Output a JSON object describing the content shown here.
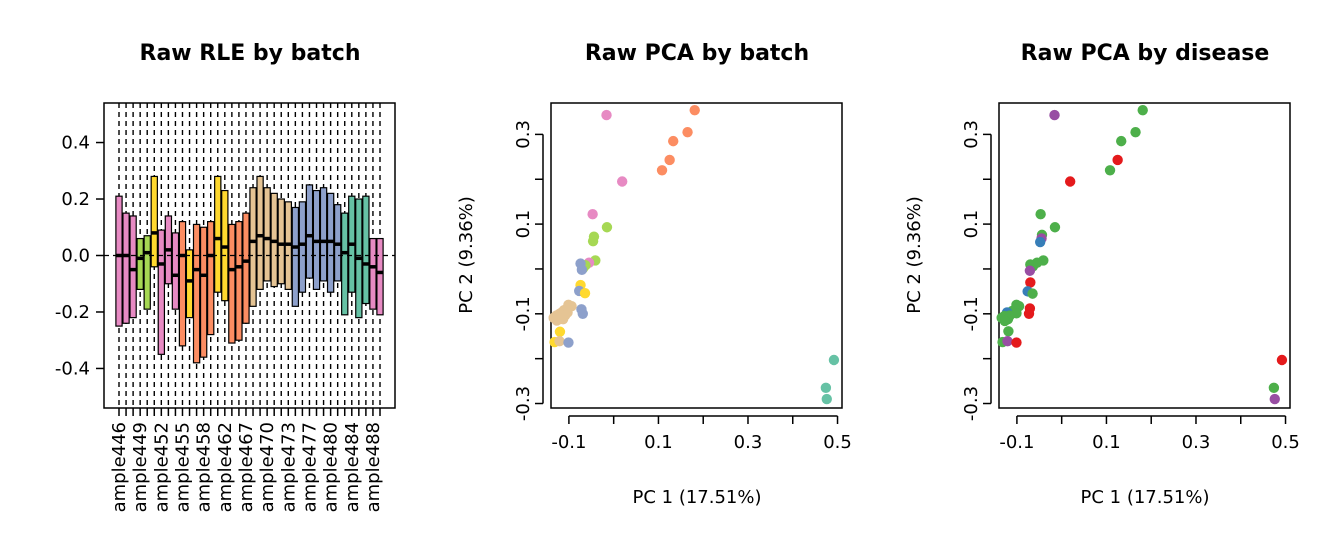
{
  "chart_data": [
    {
      "type": "box",
      "title": "Raw RLE by batch",
      "xlabel": "",
      "ylabel": "",
      "ylim": [
        -0.54,
        0.54
      ],
      "yticks": [
        -0.4,
        -0.2,
        0.0,
        0.2,
        0.4
      ],
      "ytick_labels": [
        "-0.4",
        "-0.2",
        "0.0",
        "0.2",
        "0.4"
      ],
      "xtick_labels": [
        "ample446",
        "ample449",
        "ample452",
        "ample455",
        "ample458",
        "ample462",
        "ample467",
        "ample470",
        "ample473",
        "ample477",
        "ample480",
        "ample484",
        "ample488"
      ],
      "xtick_label_box_index": [
        0,
        3,
        6,
        9,
        12,
        15,
        18,
        21,
        24,
        27,
        30,
        33,
        36
      ],
      "reference_line": 0,
      "boxes": [
        {
          "median": 0.0,
          "q1": -0.25,
          "q3": 0.21,
          "color": "#E78AC3"
        },
        {
          "median": 0.0,
          "q1": -0.24,
          "q3": 0.15,
          "color": "#E78AC3"
        },
        {
          "median": -0.05,
          "q1": -0.22,
          "q3": 0.14,
          "color": "#E78AC3"
        },
        {
          "median": -0.01,
          "q1": -0.12,
          "q3": 0.06,
          "color": "#A6D854"
        },
        {
          "median": 0.01,
          "q1": -0.19,
          "q3": 0.07,
          "color": "#A6D854"
        },
        {
          "median": 0.08,
          "q1": -0.04,
          "q3": 0.28,
          "color": "#FFD92F"
        },
        {
          "median": -0.03,
          "q1": -0.35,
          "q3": 0.09,
          "color": "#E78AC3"
        },
        {
          "median": 0.02,
          "q1": -0.1,
          "q3": 0.14,
          "color": "#E78AC3"
        },
        {
          "median": -0.07,
          "q1": -0.19,
          "q3": 0.08,
          "color": "#E78AC3"
        },
        {
          "median": 0.0,
          "q1": -0.32,
          "q3": 0.12,
          "color": "#FC8D62"
        },
        {
          "median": -0.09,
          "q1": -0.22,
          "q3": 0.02,
          "color": "#FFD92F"
        },
        {
          "median": -0.05,
          "q1": -0.38,
          "q3": 0.11,
          "color": "#FC8D62"
        },
        {
          "median": -0.07,
          "q1": -0.36,
          "q3": 0.1,
          "color": "#FC8D62"
        },
        {
          "median": 0.0,
          "q1": -0.28,
          "q3": 0.12,
          "color": "#FC8D62"
        },
        {
          "median": 0.06,
          "q1": -0.13,
          "q3": 0.28,
          "color": "#FFD92F"
        },
        {
          "median": 0.03,
          "q1": -0.16,
          "q3": 0.23,
          "color": "#FFD92F"
        },
        {
          "median": -0.05,
          "q1": -0.31,
          "q3": 0.11,
          "color": "#FC8D62"
        },
        {
          "median": -0.04,
          "q1": -0.3,
          "q3": 0.12,
          "color": "#FC8D62"
        },
        {
          "median": -0.02,
          "q1": -0.24,
          "q3": 0.15,
          "color": "#FC8D62"
        },
        {
          "median": 0.05,
          "q1": -0.18,
          "q3": 0.24,
          "color": "#E5C494"
        },
        {
          "median": 0.07,
          "q1": -0.12,
          "q3": 0.28,
          "color": "#E5C494"
        },
        {
          "median": 0.06,
          "q1": -0.09,
          "q3": 0.24,
          "color": "#E5C494"
        },
        {
          "median": 0.05,
          "q1": -0.11,
          "q3": 0.22,
          "color": "#E5C494"
        },
        {
          "median": 0.04,
          "q1": -0.1,
          "q3": 0.2,
          "color": "#E5C494"
        },
        {
          "median": 0.04,
          "q1": -0.12,
          "q3": 0.19,
          "color": "#E5C494"
        },
        {
          "median": 0.03,
          "q1": -0.18,
          "q3": 0.17,
          "color": "#8DA0CB"
        },
        {
          "median": 0.04,
          "q1": -0.13,
          "q3": 0.19,
          "color": "#8DA0CB"
        },
        {
          "median": 0.07,
          "q1": -0.08,
          "q3": 0.25,
          "color": "#8DA0CB"
        },
        {
          "median": 0.05,
          "q1": -0.12,
          "q3": 0.23,
          "color": "#8DA0CB"
        },
        {
          "median": 0.05,
          "q1": -0.09,
          "q3": 0.24,
          "color": "#8DA0CB"
        },
        {
          "median": 0.05,
          "q1": -0.13,
          "q3": 0.22,
          "color": "#8DA0CB"
        },
        {
          "median": 0.04,
          "q1": -0.09,
          "q3": 0.18,
          "color": "#8DA0CB"
        },
        {
          "median": 0.01,
          "q1": -0.21,
          "q3": 0.15,
          "color": "#66C2A5"
        },
        {
          "median": 0.04,
          "q1": -0.13,
          "q3": 0.21,
          "color": "#66C2A5"
        },
        {
          "median": -0.01,
          "q1": -0.22,
          "q3": 0.2,
          "color": "#66C2A5"
        },
        {
          "median": -0.03,
          "q1": -0.17,
          "q3": 0.21,
          "color": "#66C2A5"
        },
        {
          "median": -0.04,
          "q1": -0.19,
          "q3": 0.06,
          "color": "#E78AC3"
        },
        {
          "median": -0.06,
          "q1": -0.21,
          "q3": 0.06,
          "color": "#E78AC3"
        }
      ]
    },
    {
      "type": "scatter",
      "title": "Raw PCA by batch",
      "xlabel": "PC 1 (17.51%)",
      "ylabel": "PC 2 (9.36%)",
      "xlim": [
        -0.14,
        0.51
      ],
      "ylim": [
        -0.31,
        0.37
      ],
      "xticks": [
        -0.1,
        0.0,
        0.1,
        0.2,
        0.3,
        0.4,
        0.5
      ],
      "xtick_labels": [
        "-0.1",
        "",
        "0.1",
        "",
        "0.3",
        "",
        "0.5"
      ],
      "yticks": [
        -0.3,
        -0.2,
        -0.1,
        0.0,
        0.1,
        0.2,
        0.3
      ],
      "ytick_labels": [
        "-0.3",
        "",
        "-0.1",
        "",
        "0.1",
        "",
        "0.3"
      ],
      "points": [
        {
          "x": 0.181,
          "y": 0.354,
          "color": "#FC8D62"
        },
        {
          "x": 0.165,
          "y": 0.305,
          "color": "#FC8D62"
        },
        {
          "x": 0.133,
          "y": 0.285,
          "color": "#FC8D62"
        },
        {
          "x": 0.125,
          "y": 0.243,
          "color": "#FC8D62"
        },
        {
          "x": 0.108,
          "y": 0.22,
          "color": "#FC8D62"
        },
        {
          "x": -0.016,
          "y": 0.343,
          "color": "#E78AC3"
        },
        {
          "x": 0.019,
          "y": 0.195,
          "color": "#E78AC3"
        },
        {
          "x": -0.047,
          "y": 0.122,
          "color": "#E78AC3"
        },
        {
          "x": -0.015,
          "y": 0.093,
          "color": "#A6D854"
        },
        {
          "x": -0.044,
          "y": 0.072,
          "color": "#A6D854"
        },
        {
          "x": -0.046,
          "y": 0.062,
          "color": "#A6D854"
        },
        {
          "x": -0.041,
          "y": 0.019,
          "color": "#A6D854"
        },
        {
          "x": -0.055,
          "y": 0.014,
          "color": "#E78AC3"
        },
        {
          "x": -0.063,
          "y": 0.008,
          "color": "#A6D854"
        },
        {
          "x": -0.068,
          "y": 0.002,
          "color": "#A6D854"
        },
        {
          "x": -0.074,
          "y": 0.012,
          "color": "#8DA0CB"
        },
        {
          "x": -0.071,
          "y": -0.002,
          "color": "#8DA0CB"
        },
        {
          "x": -0.074,
          "y": -0.036,
          "color": "#FFD92F"
        },
        {
          "x": -0.077,
          "y": -0.049,
          "color": "#8DA0CB"
        },
        {
          "x": -0.064,
          "y": -0.054,
          "color": "#FFD92F"
        },
        {
          "x": -0.072,
          "y": -0.09,
          "color": "#8DA0CB"
        },
        {
          "x": -0.069,
          "y": -0.1,
          "color": "#8DA0CB"
        },
        {
          "x": -0.101,
          "y": -0.08,
          "color": "#E5C494"
        },
        {
          "x": -0.094,
          "y": -0.083,
          "color": "#E5C494"
        },
        {
          "x": -0.104,
          "y": -0.088,
          "color": "#E5C494"
        },
        {
          "x": -0.111,
          "y": -0.092,
          "color": "#E5C494"
        },
        {
          "x": -0.103,
          "y": -0.097,
          "color": "#E5C494"
        },
        {
          "x": -0.116,
          "y": -0.097,
          "color": "#E5C494"
        },
        {
          "x": -0.108,
          "y": -0.103,
          "color": "#E5C494"
        },
        {
          "x": -0.121,
          "y": -0.1,
          "color": "#E5C494"
        },
        {
          "x": -0.128,
          "y": -0.104,
          "color": "#E5C494"
        },
        {
          "x": -0.134,
          "y": -0.109,
          "color": "#E5C494"
        },
        {
          "x": -0.122,
          "y": -0.112,
          "color": "#E5C494"
        },
        {
          "x": -0.127,
          "y": -0.115,
          "color": "#E5C494"
        },
        {
          "x": -0.113,
          "y": -0.112,
          "color": "#E5C494"
        },
        {
          "x": -0.12,
          "y": -0.14,
          "color": "#FFD92F"
        },
        {
          "x": -0.132,
          "y": -0.163,
          "color": "#FFD92F"
        },
        {
          "x": -0.121,
          "y": -0.161,
          "color": "#E5C494"
        },
        {
          "x": -0.101,
          "y": -0.164,
          "color": "#8DA0CB"
        },
        {
          "x": 0.492,
          "y": -0.203,
          "color": "#66C2A5"
        },
        {
          "x": 0.474,
          "y": -0.265,
          "color": "#66C2A5"
        },
        {
          "x": 0.476,
          "y": -0.29,
          "color": "#66C2A5"
        }
      ]
    },
    {
      "type": "scatter",
      "title": "Raw PCA by disease",
      "xlabel": "PC 1 (17.51%)",
      "ylabel": "PC 2 (9.36%)",
      "xlim": [
        -0.14,
        0.51
      ],
      "ylim": [
        -0.31,
        0.37
      ],
      "xticks": [
        -0.1,
        0.0,
        0.1,
        0.2,
        0.3,
        0.4,
        0.5
      ],
      "xtick_labels": [
        "-0.1",
        "",
        "0.1",
        "",
        "0.3",
        "",
        "0.5"
      ],
      "yticks": [
        -0.3,
        -0.2,
        -0.1,
        0.0,
        0.1,
        0.2,
        0.3
      ],
      "ytick_labels": [
        "-0.3",
        "",
        "-0.1",
        "",
        "0.1",
        "",
        "0.3"
      ],
      "points": [
        {
          "x": 0.181,
          "y": 0.354,
          "color": "#4DAF4A"
        },
        {
          "x": 0.165,
          "y": 0.305,
          "color": "#4DAF4A"
        },
        {
          "x": 0.133,
          "y": 0.285,
          "color": "#4DAF4A"
        },
        {
          "x": 0.125,
          "y": 0.243,
          "color": "#E41A1C"
        },
        {
          "x": 0.108,
          "y": 0.22,
          "color": "#4DAF4A"
        },
        {
          "x": -0.016,
          "y": 0.343,
          "color": "#984EA3"
        },
        {
          "x": 0.019,
          "y": 0.195,
          "color": "#E41A1C"
        },
        {
          "x": -0.047,
          "y": 0.122,
          "color": "#4DAF4A"
        },
        {
          "x": -0.015,
          "y": 0.093,
          "color": "#4DAF4A"
        },
        {
          "x": -0.044,
          "y": 0.076,
          "color": "#4DAF4A"
        },
        {
          "x": -0.045,
          "y": 0.068,
          "color": "#984EA3"
        },
        {
          "x": -0.048,
          "y": 0.06,
          "color": "#377EB8"
        },
        {
          "x": -0.041,
          "y": 0.019,
          "color": "#4DAF4A"
        },
        {
          "x": -0.055,
          "y": 0.014,
          "color": "#4DAF4A"
        },
        {
          "x": -0.07,
          "y": 0.01,
          "color": "#4DAF4A"
        },
        {
          "x": -0.064,
          "y": 0.006,
          "color": "#4DAF4A"
        },
        {
          "x": -0.071,
          "y": -0.004,
          "color": "#984EA3"
        },
        {
          "x": -0.07,
          "y": -0.03,
          "color": "#E41A1C"
        },
        {
          "x": -0.076,
          "y": -0.05,
          "color": "#377EB8"
        },
        {
          "x": -0.065,
          "y": -0.055,
          "color": "#4DAF4A"
        },
        {
          "x": -0.071,
          "y": -0.088,
          "color": "#E41A1C"
        },
        {
          "x": -0.073,
          "y": -0.1,
          "color": "#E41A1C"
        },
        {
          "x": -0.101,
          "y": -0.08,
          "color": "#4DAF4A"
        },
        {
          "x": -0.095,
          "y": -0.083,
          "color": "#4DAF4A"
        },
        {
          "x": -0.104,
          "y": -0.09,
          "color": "#4DAF4A"
        },
        {
          "x": -0.111,
          "y": -0.094,
          "color": "#4DAF4A"
        },
        {
          "x": -0.101,
          "y": -0.099,
          "color": "#4DAF4A"
        },
        {
          "x": -0.122,
          "y": -0.097,
          "color": "#377EB8"
        },
        {
          "x": -0.116,
          "y": -0.104,
          "color": "#4DAF4A"
        },
        {
          "x": -0.128,
          "y": -0.105,
          "color": "#4DAF4A"
        },
        {
          "x": -0.134,
          "y": -0.109,
          "color": "#4DAF4A"
        },
        {
          "x": -0.12,
          "y": -0.112,
          "color": "#4DAF4A"
        },
        {
          "x": -0.127,
          "y": -0.116,
          "color": "#4DAF4A"
        },
        {
          "x": -0.119,
          "y": -0.139,
          "color": "#4DAF4A"
        },
        {
          "x": -0.132,
          "y": -0.163,
          "color": "#4DAF4A"
        },
        {
          "x": -0.121,
          "y": -0.161,
          "color": "#984EA3"
        },
        {
          "x": -0.101,
          "y": -0.164,
          "color": "#E41A1C"
        },
        {
          "x": 0.492,
          "y": -0.203,
          "color": "#E41A1C"
        },
        {
          "x": 0.474,
          "y": -0.265,
          "color": "#4DAF4A"
        },
        {
          "x": 0.476,
          "y": -0.29,
          "color": "#984EA3"
        }
      ]
    }
  ]
}
